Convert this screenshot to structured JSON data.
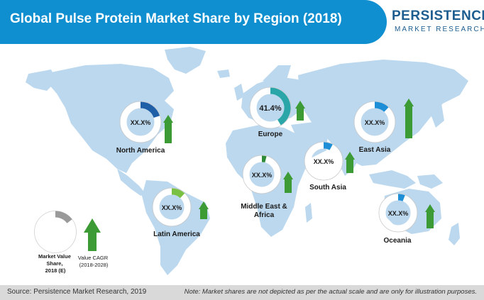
{
  "title": "Global Pulse Protein Market Share by Region (2018)",
  "logo": {
    "line1": "PERSISTENCE",
    "line2": "MARKET RESEARCH"
  },
  "footer": {
    "source": "Source: Persistence Market Research, 2019",
    "note": "Note: Market shares are not depicted as per the actual scale and are only for illustration purposes."
  },
  "legend": {
    "share_label": [
      "Market Value",
      "Share,",
      "2018 (E)"
    ],
    "cagr_label": [
      "Value CAGR",
      "(2018-2028)"
    ]
  },
  "colors": {
    "header": "#0f8fd0",
    "map": "#bcd8ee",
    "ring_track": "#ffffff",
    "arrow": "#3d9b35"
  },
  "chart_data": {
    "type": "donut-map",
    "title": "Global Pulse Protein Market Share by Region (2018)",
    "series": [
      {
        "region": "North America",
        "value_label": "XX.X%",
        "ring_color": "#1f5fa8"
      },
      {
        "region": "Europe",
        "value_label": "41.4%",
        "share_percent": 41.4,
        "ring_color": "#2aa5a8"
      },
      {
        "region": "East Asia",
        "value_label": "XX.X%",
        "ring_color": "#1e8fd6"
      },
      {
        "region": "South Asia",
        "value_label": "XX.X%",
        "ring_color": "#1e8fd6"
      },
      {
        "region": "Middle East & Africa",
        "value_label": "XX.X%",
        "ring_color": "#2e8b3a"
      },
      {
        "region": "Latin America",
        "value_label": "XX.X%",
        "ring_color": "#7ac143"
      },
      {
        "region": "Oceania",
        "value_label": "XX.X%",
        "ring_color": "#1e8fd6"
      }
    ]
  }
}
